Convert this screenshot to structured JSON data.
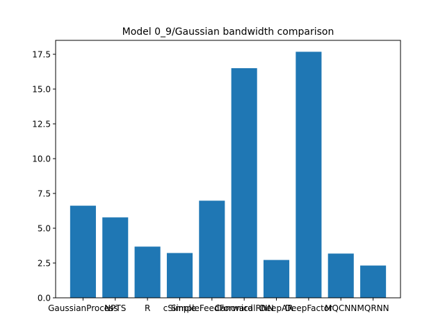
{
  "chart_data": {
    "type": "bar",
    "title": "Model 0_9/Gaussian bandwidth comparison",
    "xlabel": "",
    "ylabel": "",
    "categories": [
      "GaussianProcess",
      "NPTS",
      "R",
      "cSimple",
      "SimpleFeedForward",
      "CanonicalRNN",
      "DeepAR",
      "DeepFactor",
      "MQCNN",
      "MQRNN"
    ],
    "values": [
      6.62,
      5.78,
      3.68,
      3.22,
      6.98,
      16.5,
      2.72,
      17.68,
      3.18,
      2.32
    ],
    "ylim": [
      0,
      18.5
    ],
    "yticks": [
      "0.0",
      "2.5",
      "5.0",
      "7.5",
      "10.0",
      "12.5",
      "15.0",
      "17.5"
    ],
    "grid": false,
    "legend": "none",
    "bar_color": "#1f77b4"
  }
}
